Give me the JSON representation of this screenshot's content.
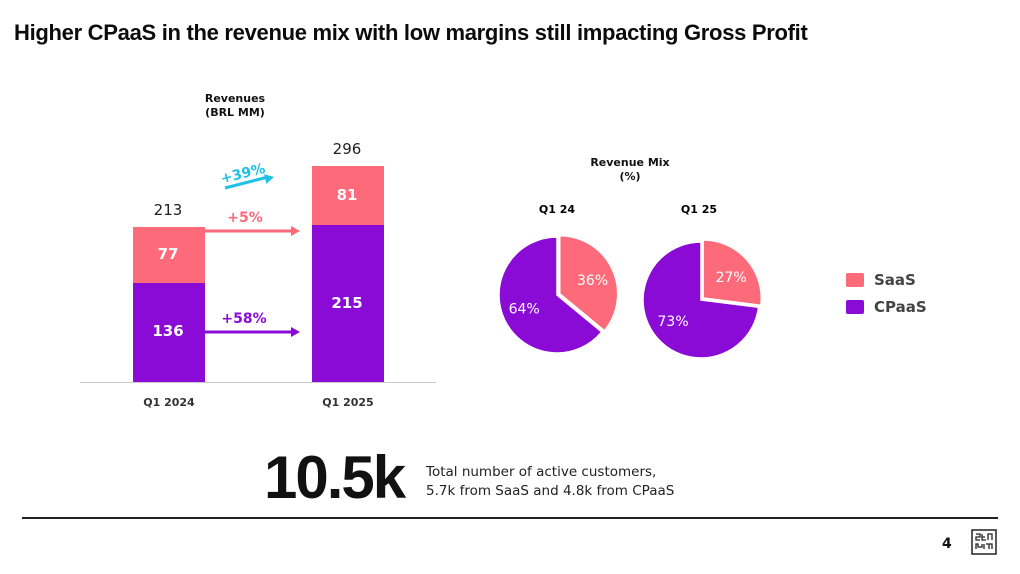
{
  "title": "Higher CPaaS in the revenue mix with low margins still impacting Gross Profit",
  "colors": {
    "saas": "#fd6a7a",
    "cpaas": "#8b0bd6",
    "total_growth": "#1ec0e6",
    "axis": "#cccccc"
  },
  "chart_data": [
    {
      "type": "bar",
      "stacked": true,
      "title": "Revenues (BRL MM)",
      "title_lines": [
        "Revenues",
        "(BRL MM)"
      ],
      "categories": [
        "Q1 2024",
        "Q1 2025"
      ],
      "series": [
        {
          "name": "CPaaS",
          "values": [
            136,
            215
          ]
        },
        {
          "name": "SaaS",
          "values": [
            77,
            81
          ]
        }
      ],
      "totals": [
        213,
        296
      ],
      "growth_annotations": [
        {
          "label": "+39%",
          "series": "Total"
        },
        {
          "label": "+5%",
          "series": "SaaS"
        },
        {
          "label": "+58%",
          "series": "CPaaS"
        }
      ],
      "ylim": [
        0,
        320
      ]
    },
    {
      "type": "pie",
      "title": "Revenue Mix (%)",
      "title_lines": [
        "Revenue Mix",
        "(%)"
      ],
      "pies": [
        {
          "label": "Q1 24",
          "slices": [
            {
              "name": "SaaS",
              "value": 36,
              "label": "36%"
            },
            {
              "name": "CPaaS",
              "value": 64,
              "label": "64%"
            }
          ]
        },
        {
          "label": "Q1 25",
          "slices": [
            {
              "name": "SaaS",
              "value": 27,
              "label": "27%"
            },
            {
              "name": "CPaaS",
              "value": 73,
              "label": "73%"
            }
          ]
        }
      ],
      "legend": [
        "SaaS",
        "CPaaS"
      ],
      "legend_position": "right"
    }
  ],
  "kpi": {
    "value": "10.5k",
    "line1": "Total number of active customers,",
    "line2": "5.7k from SaaS and 4.8k from CPaaS"
  },
  "footer": {
    "page_number": "4",
    "logo_icon": "zenvia-logo-icon"
  }
}
